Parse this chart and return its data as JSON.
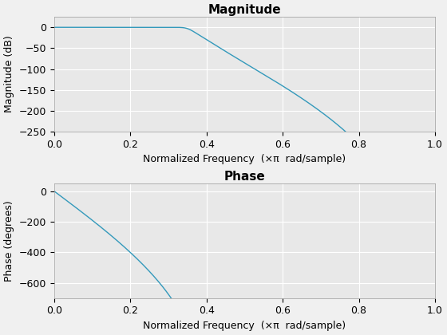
{
  "title_mag": "Magnitude",
  "title_phase": "Phase",
  "xlabel": "Normalized Frequency  (×π  rad/sample)",
  "ylabel_mag": "Magnitude (dB)",
  "ylabel_phase": "Phase (degrees)",
  "line_color": "#3399bb",
  "fig_bg": "#f0f0f0",
  "axes_bg": "#e8e8e8",
  "xlim": [
    0,
    1
  ],
  "ylim_mag": [
    -250,
    25
  ],
  "ylim_phase": [
    -700,
    50
  ],
  "yticks_mag": [
    0,
    -50,
    -100,
    -150,
    -200,
    -250
  ],
  "yticks_phase": [
    0,
    -200,
    -400,
    -600
  ],
  "xticks": [
    0,
    0.2,
    0.4,
    0.6,
    0.8,
    1
  ],
  "grid_color": "#ffffff",
  "title_fontsize": 11,
  "label_fontsize": 9,
  "tick_fontsize": 9
}
